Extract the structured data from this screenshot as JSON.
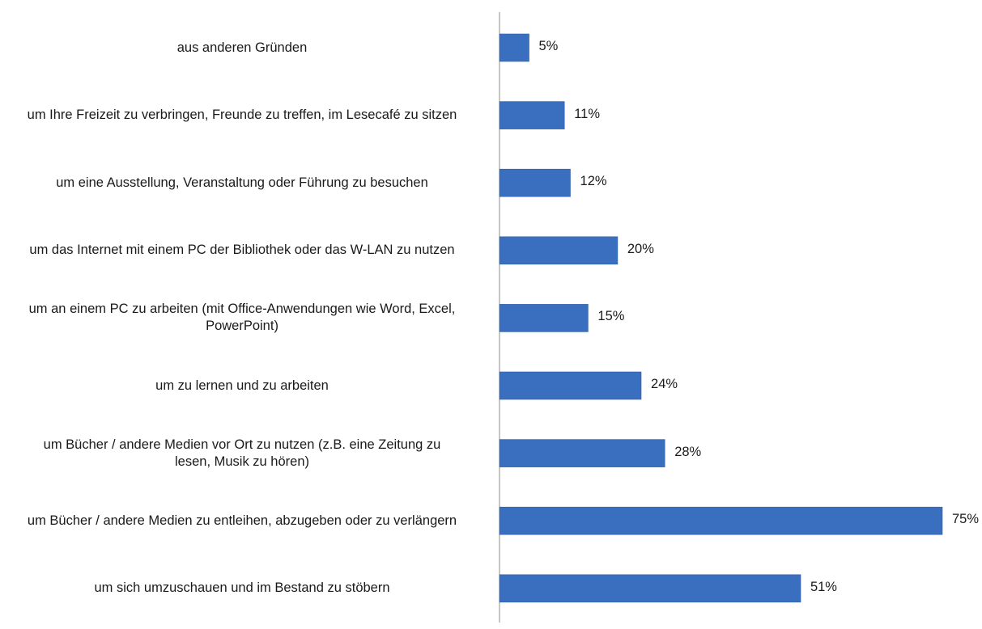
{
  "chart_data": {
    "type": "bar",
    "orientation": "horizontal",
    "categories": [
      "aus anderen Gründen",
      "um Ihre Freizeit zu verbringen, Freunde zu treffen, im Lesecafé zu sitzen",
      "um eine Ausstellung, Veranstaltung oder Führung zu besuchen",
      "um das Internet mit einem PC der Bibliothek oder das W-LAN zu nutzen",
      "um an einem PC zu arbeiten (mit Office-Anwendungen wie Word, Excel, PowerPoint)",
      "um zu lernen und zu arbeiten",
      "um Bücher / andere Medien vor Ort zu nutzen (z.B. eine Zeitung zu lesen, Musik zu hören)",
      "um Bücher / andere Medien zu entleihen, abzugeben oder zu verlängern",
      "um sich umzuschauen und im Bestand zu stöbern"
    ],
    "category_lines": [
      [
        "aus anderen Gründen"
      ],
      [
        "um Ihre Freizeit zu verbringen, Freunde zu treffen, im Lesecafé zu sitzen"
      ],
      [
        "um eine Ausstellung, Veranstaltung oder Führung zu besuchen"
      ],
      [
        "um das Internet mit einem PC der Bibliothek oder das W-LAN zu nutzen"
      ],
      [
        "um an einem PC zu arbeiten (mit Office-Anwendungen wie Word, Excel,",
        "PowerPoint)"
      ],
      [
        "um zu lernen und zu arbeiten"
      ],
      [
        "um Bücher / andere Medien vor Ort zu nutzen (z.B. eine Zeitung zu",
        "lesen, Musik zu hören)"
      ],
      [
        "um Bücher / andere Medien zu entleihen, abzugeben oder zu verlängern"
      ],
      [
        "um sich umzuschauen und im Bestand zu stöbern"
      ]
    ],
    "values": [
      5,
      11,
      12,
      20,
      15,
      24,
      28,
      75,
      51
    ],
    "value_labels": [
      "5%",
      "11%",
      "12%",
      "20%",
      "15%",
      "24%",
      "28%",
      "75%",
      "51%"
    ],
    "xlim": [
      0,
      75
    ],
    "grid": false,
    "colors": {
      "bar": "#3a6fc0",
      "bar_edge": "#2f5fa6",
      "axis": "#8c8c8c"
    }
  }
}
